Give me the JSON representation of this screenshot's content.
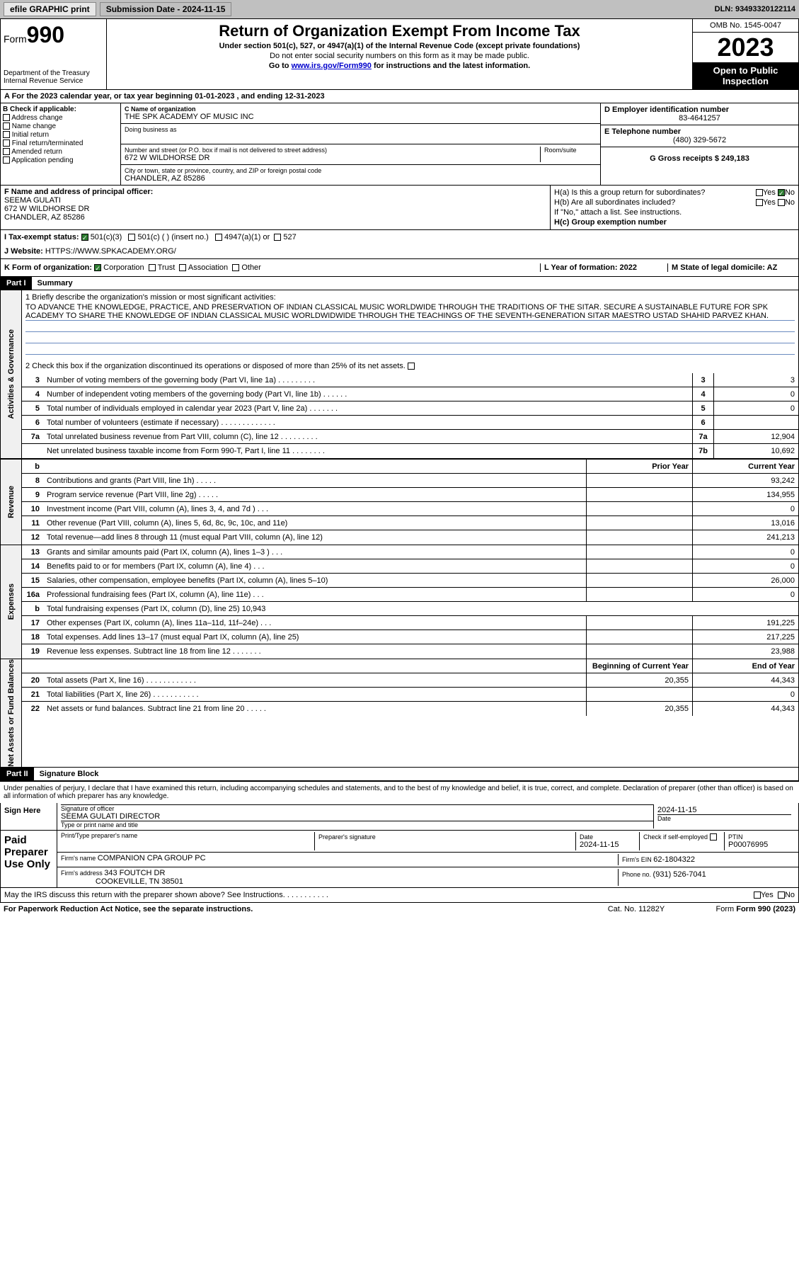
{
  "top": {
    "efile": "efile GRAPHIC print",
    "submission": "Submission Date - 2024-11-15",
    "dln": "DLN: 93493320122114"
  },
  "header": {
    "form": "Form",
    "form_num": "990",
    "title": "Return of Organization Exempt From Income Tax",
    "subtitle": "Under section 501(c), 527, or 4947(a)(1) of the Internal Revenue Code (except private foundations)",
    "ssn_note": "Do not enter social security numbers on this form as it may be made public.",
    "goto": "Go to ",
    "goto_link": "www.irs.gov/Form990",
    "goto_suffix": " for instructions and the latest information.",
    "dept1": "Department of the Treasury",
    "dept2": "Internal Revenue Service",
    "omb": "OMB No. 1545-0047",
    "year": "2023",
    "inspection": "Open to Public Inspection"
  },
  "sectionA": {
    "line": "A For the 2023 calendar year, or tax year beginning 01-01-2023     , and ending 12-31-2023"
  },
  "sectionB": {
    "label": "B Check if applicable:",
    "items": [
      "Address change",
      "Name change",
      "Initial return",
      "Final return/terminated",
      "Amended return",
      "Application pending"
    ],
    "c_label": "C Name of organization",
    "c_name": "THE SPK ACADEMY OF MUSIC INC",
    "dba": "Doing business as",
    "street_label": "Number and street (or P.O. box if mail is not delivered to street address)",
    "room": "Room/suite",
    "street": "672 W WILDHORSE DR",
    "city_label": "City or town, state or province, country, and ZIP or foreign postal code",
    "city": "CHANDLER, AZ  85286",
    "d_label": "D Employer identification number",
    "d_ein": "83-4641257",
    "e_label": "E Telephone number",
    "e_phone": "(480) 329-5672",
    "g_label": "G Gross receipts $ 249,183"
  },
  "sectionF": {
    "label": "F  Name and address of principal officer:",
    "name": "SEEMA GULATI",
    "addr1": "672 W WILDHORSE DR",
    "addr2": "CHANDLER, AZ  85286",
    "ha": "H(a)  Is this a group return for subordinates?",
    "ha_no": "No",
    "hb": "H(b)  Are all subordinates included?",
    "hb_note": "If \"No,\" attach a list. See instructions.",
    "hc": "H(c)  Group exemption number  ",
    "yes": "Yes",
    "no": "No"
  },
  "sectionI": {
    "label": "I    Tax-exempt status:",
    "opt1": "501(c)(3)",
    "opt2": "501(c) (  ) (insert no.)",
    "opt3": "4947(a)(1) or",
    "opt4": "527"
  },
  "sectionJ": {
    "label": "J    Website: ",
    "url": "HTTPS://WWW.SPKACADEMY.ORG/"
  },
  "sectionK": {
    "label": "K Form of organization:",
    "corp": "Corporation",
    "trust": "Trust",
    "assoc": "Association",
    "other": "Other",
    "l_label": "L Year of formation: 2022",
    "m_label": "M State of legal domicile: AZ"
  },
  "part1": {
    "hdr": "Part I",
    "title": "Summary",
    "line1_label": "1   Briefly describe the organization's mission or most significant activities:",
    "mission": "TO ADVANCE THE KNOWLEDGE, PRACTICE, AND PRESERVATION OF INDIAN CLASSICAL MUSIC WORLDWIDE THROUGH THE TRADITIONS OF THE SITAR. SECURE A SUSTAINABLE FUTURE FOR SPK ACADEMY TO SHARE THE KNOWLEDGE OF INDIAN CLASSICAL MUSIC WORLDWIDWIDE THROUGH THE TEACHINGS OF THE SEVENTH-GENERATION SITAR MAESTRO USTAD SHAHID PARVEZ KHAN.",
    "line2": "2   Check this box       if the organization discontinued its operations or disposed of more than 25% of its net assets."
  },
  "governance": {
    "section_label": "Activities & Governance",
    "rows": [
      {
        "n": "3",
        "t": "Number of voting members of the governing body (Part VI, line 1a)   .    .    .    .    .    .    .    .    .",
        "rn": "3",
        "v": "3"
      },
      {
        "n": "4",
        "t": "Number of independent voting members of the governing body (Part VI, line 1b)  .    .    .    .    .    .",
        "rn": "4",
        "v": "0"
      },
      {
        "n": "5",
        "t": "Total number of individuals employed in calendar year 2023 (Part V, line 2a)  .    .    .    .    .    .    .",
        "rn": "5",
        "v": "0"
      },
      {
        "n": "6",
        "t": "Total number of volunteers (estimate if necessary)   .    .    .    .    .    .    .    .    .    .    .    .    .",
        "rn": "6",
        "v": ""
      },
      {
        "n": "7a",
        "t": "Total unrelated business revenue from Part VIII, column (C), line 12  .    .    .    .    .    .    .    .    .",
        "rn": "7a",
        "v": "12,904"
      },
      {
        "n": "",
        "t": "Net unrelated business taxable income from Form 990-T, Part I, line 11  .    .    .    .    .    .    .    .",
        "rn": "7b",
        "v": "10,692"
      }
    ]
  },
  "revenue": {
    "section_label": "Revenue",
    "hdr_prior": "Prior Year",
    "hdr_current": "Current Year",
    "rows": [
      {
        "n": "8",
        "t": "Contributions and grants (Part VIII, line 1h)   .    .    .    .    .",
        "p": "",
        "c": "93,242"
      },
      {
        "n": "9",
        "t": "Program service revenue (Part VIII, line 2g)   .    .    .    .    .",
        "p": "",
        "c": "134,955"
      },
      {
        "n": "10",
        "t": "Investment income (Part VIII, column (A), lines 3, 4, and 7d )   .    .    .",
        "p": "",
        "c": "0"
      },
      {
        "n": "11",
        "t": "Other revenue (Part VIII, column (A), lines 5, 6d, 8c, 9c, 10c, and 11e)",
        "p": "",
        "c": "13,016"
      },
      {
        "n": "12",
        "t": "Total revenue—add lines 8 through 11 (must equal Part VIII, column (A), line 12)",
        "p": "",
        "c": "241,213"
      }
    ]
  },
  "expenses": {
    "section_label": "Expenses",
    "rows": [
      {
        "n": "13",
        "t": "Grants and similar amounts paid (Part IX, column (A), lines 1–3 )   .    .    .",
        "p": "",
        "c": "0"
      },
      {
        "n": "14",
        "t": "Benefits paid to or for members (Part IX, column (A), line 4)   .    .    .",
        "p": "",
        "c": "0"
      },
      {
        "n": "15",
        "t": "Salaries, other compensation, employee benefits (Part IX, column (A), lines 5–10)",
        "p": "",
        "c": "26,000"
      },
      {
        "n": "16a",
        "t": "Professional fundraising fees (Part IX, column (A), line 11e)   .    .    .",
        "p": "",
        "c": "0"
      },
      {
        "n": "b",
        "t": "Total fundraising expenses (Part IX, column (D), line 25) 10,943",
        "p": null,
        "c": null
      },
      {
        "n": "17",
        "t": "Other expenses (Part IX, column (A), lines 11a–11d, 11f–24e)   .    .    .",
        "p": "",
        "c": "191,225"
      },
      {
        "n": "18",
        "t": "Total expenses. Add lines 13–17 (must equal Part IX, column (A), line 25)",
        "p": "",
        "c": "217,225"
      },
      {
        "n": "19",
        "t": "Revenue less expenses. Subtract line 18 from line 12  .    .    .    .    .    .    .",
        "p": "",
        "c": "23,988"
      }
    ]
  },
  "netassets": {
    "section_label": "Net Assets or Fund Balances",
    "hdr_begin": "Beginning of Current Year",
    "hdr_end": "End of Year",
    "rows": [
      {
        "n": "20",
        "t": "Total assets (Part X, line 16)  .    .    .    .    .    .    .    .    .    .    .    .",
        "p": "20,355",
        "c": "44,343"
      },
      {
        "n": "21",
        "t": "Total liabilities (Part X, line 26)  .    .    .    .    .    .    .    .    .    .    .",
        "p": "",
        "c": "0"
      },
      {
        "n": "22",
        "t": "Net assets or fund balances. Subtract line 21 from line 20  .    .    .    .    .",
        "p": "20,355",
        "c": "44,343"
      }
    ]
  },
  "part2": {
    "hdr": "Part II",
    "title": "Signature Block",
    "perjury": "Under penalties of perjury, I declare that I have examined this return, including accompanying schedules and statements, and to the best of my knowledge and belief, it is true, correct, and complete. Declaration of preparer (other than officer) is based on all information of which preparer has any knowledge."
  },
  "sign": {
    "left": "Sign Here",
    "sig_officer": "Signature of officer",
    "officer": "SEEMA GULATI  DIRECTOR",
    "type_print": "Type or print name and title",
    "date_lbl": "Date",
    "date": "2024-11-15"
  },
  "preparer": {
    "left": "Paid Preparer Use Only",
    "print_label": "Print/Type preparer's name",
    "sig_label": "Preparer's signature",
    "date_label": "Date",
    "date": "2024-11-15",
    "check_label": "Check         if self-employed",
    "ptin_label": "PTIN",
    "ptin": "P00076995",
    "firm_name_label": "Firm's name     ",
    "firm_name": "COMPANION CPA GROUP PC",
    "firm_ein_label": "Firm's EIN  ",
    "firm_ein": "62-1804322",
    "firm_addr_label": "Firm's address ",
    "firm_addr1": "343 FOUTCH DR",
    "firm_addr2": "COOKEVILLE, TN  38501",
    "phone_label": "Phone no. ",
    "phone": "(931) 526-7041"
  },
  "footer": {
    "discuss": "May the IRS discuss this return with the preparer shown above? See Instructions.   .    .    .    .    .    .    .    .    .    .",
    "yes": "Yes",
    "no": "No",
    "paperwork": "For Paperwork Reduction Act Notice, see the separate instructions.",
    "cat": "Cat. No. 11282Y",
    "form": "Form 990 (2023)"
  }
}
